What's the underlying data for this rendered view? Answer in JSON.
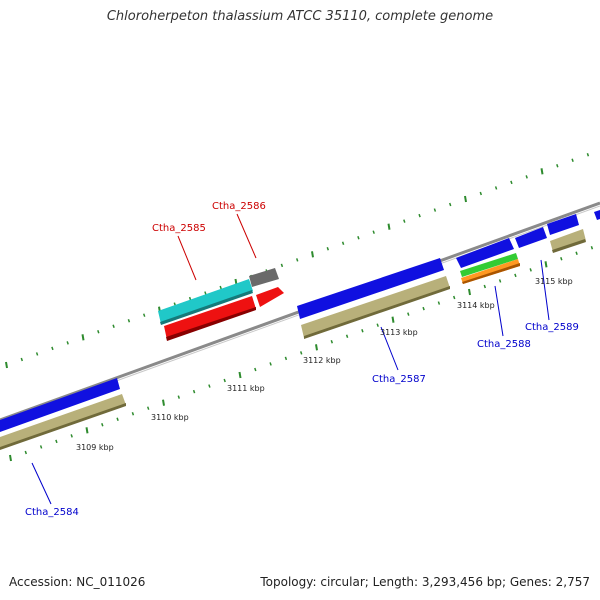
{
  "title": "Chloroherpeton thalassium ATCC 35110, complete genome",
  "footer": {
    "accession": "Accession: NC_011026",
    "topology": "Topology: circular; Length: 3,293,456 bp; Genes: 2,757"
  },
  "colors": {
    "backbone": "#8a8a8a",
    "tick": "#2e8b2e",
    "gene_forward": "#1010e0",
    "gene_forward_tan": "#b8b07a",
    "label_blue": "#0000cc",
    "label_red": "#cc0000",
    "cyan": "#20c8c8",
    "red": "#ee1111",
    "grey": "#6a6a6a",
    "green": "#33cc33",
    "orange": "#ff9922"
  },
  "scale_labels": [
    "3109 kbp",
    "3110 kbp",
    "3111 kbp",
    "3112 kbp",
    "3113 kbp",
    "3114 kbp",
    "3115 kbp"
  ],
  "gene_labels": [
    {
      "id": "ctha_2584",
      "text": "Ctha_2584",
      "color": "blue"
    },
    {
      "id": "ctha_2585",
      "text": "Ctha_2585",
      "color": "red"
    },
    {
      "id": "ctha_2586",
      "text": "Ctha_2586",
      "color": "red"
    },
    {
      "id": "ctha_2587",
      "text": "Ctha_2587",
      "color": "blue"
    },
    {
      "id": "ctha_2588",
      "text": "Ctha_2588",
      "color": "blue"
    },
    {
      "id": "ctha_2589",
      "text": "Ctha_2589",
      "color": "blue"
    }
  ]
}
